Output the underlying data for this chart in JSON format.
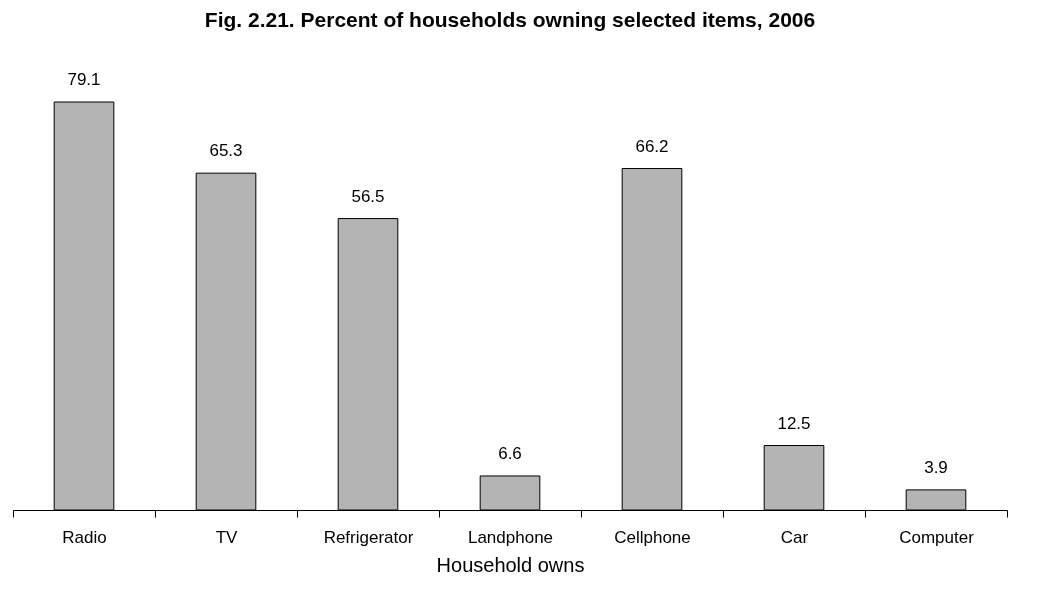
{
  "chart_data": {
    "type": "bar",
    "title": "Fig. 2.21. Percent of households owning selected items,  2006",
    "xlabel": "Household owns",
    "categories": [
      "Radio",
      "TV",
      "Refrigerator",
      "Landphone",
      "Cellphone",
      "Car",
      "Computer"
    ],
    "values": [
      79.1,
      65.3,
      56.5,
      6.6,
      66.2,
      12.5,
      3.9
    ],
    "color": "#b4b4b4",
    "data_labels": true,
    "tick_labels": "x",
    "grid": false
  }
}
